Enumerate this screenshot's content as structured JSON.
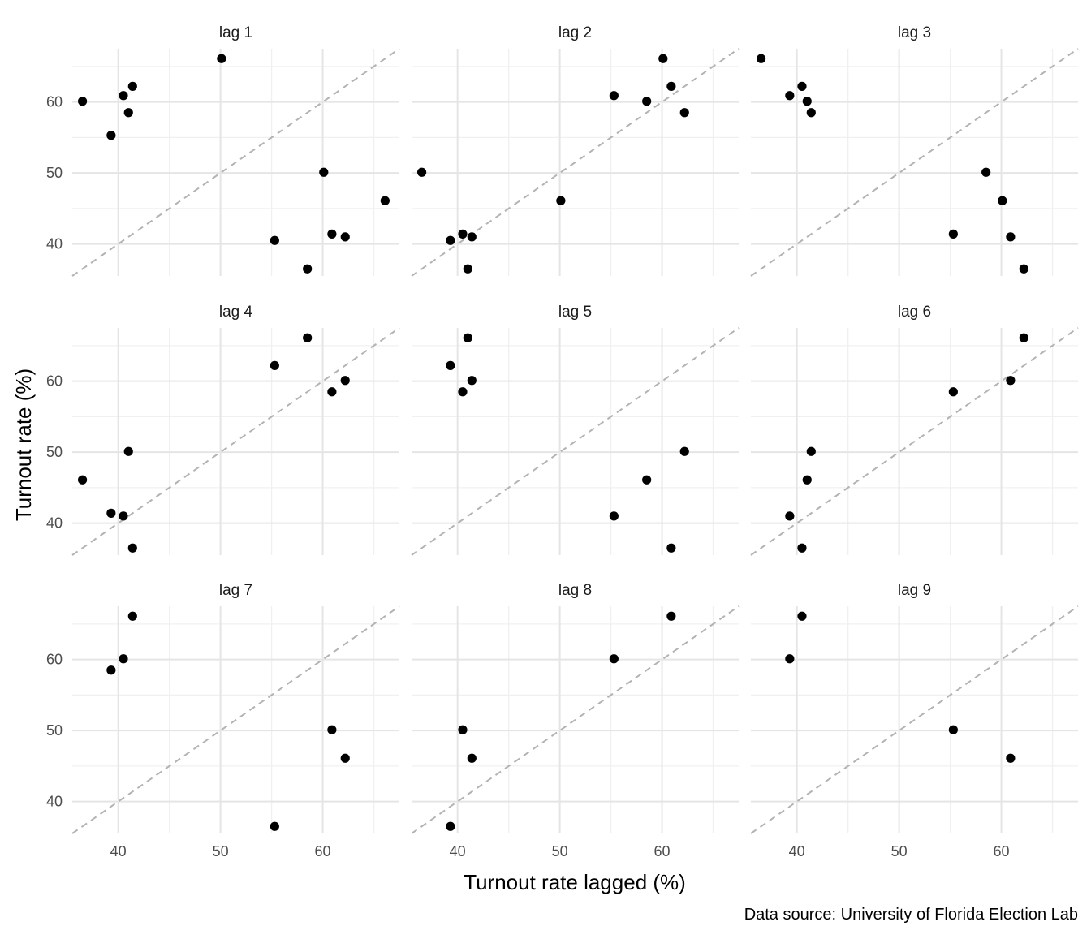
{
  "chart_data": {
    "type": "scatter",
    "facet": "wrap 3x3",
    "xlabel": "Turnout rate lagged (%)",
    "ylabel": "Turnout rate (%)",
    "caption": "Data source: University of Florida Election Lab",
    "xlim": [
      35.5,
      67.5
    ],
    "ylim": [
      35.5,
      67.5
    ],
    "x_ticks": [
      40,
      50,
      60
    ],
    "y_ticks": [
      40,
      50,
      60
    ],
    "reference_line": "y = x, dashed grey",
    "grid": true,
    "panels": [
      {
        "label": "lag 1",
        "x": [
          36.5,
          39.3,
          40.5,
          41.0,
          41.4,
          50.1,
          55.3,
          58.5,
          60.1,
          60.9,
          62.2,
          66.1
        ],
        "y": [
          60.1,
          55.3,
          60.9,
          58.5,
          62.2,
          66.1,
          40.5,
          36.5,
          50.1,
          41.4,
          41.0,
          46.1
        ]
      },
      {
        "label": "lag 2",
        "x": [
          36.5,
          39.3,
          40.5,
          41.0,
          41.4,
          50.1,
          55.3,
          58.5,
          60.1,
          60.9,
          62.2
        ],
        "y": [
          50.1,
          40.5,
          41.4,
          36.5,
          41.0,
          46.1,
          60.9,
          60.1,
          66.1,
          62.2,
          58.5
        ]
      },
      {
        "label": "lag 3",
        "x": [
          36.5,
          39.3,
          40.5,
          41.0,
          41.4,
          55.3,
          58.5,
          60.1,
          60.9,
          62.2
        ],
        "y": [
          66.1,
          60.9,
          62.2,
          60.1,
          58.5,
          41.4,
          50.1,
          46.1,
          41.0,
          36.5
        ]
      },
      {
        "label": "lag 4",
        "x": [
          36.5,
          39.3,
          40.5,
          41.0,
          41.4,
          55.3,
          58.5,
          60.9,
          62.2
        ],
        "y": [
          46.1,
          41.4,
          41.0,
          50.1,
          36.5,
          62.2,
          66.1,
          58.5,
          60.1
        ]
      },
      {
        "label": "lag 5",
        "x": [
          39.3,
          40.5,
          41.0,
          41.4,
          55.3,
          58.5,
          60.9,
          62.2
        ],
        "y": [
          62.2,
          58.5,
          66.1,
          60.1,
          41.0,
          46.1,
          36.5,
          50.1
        ]
      },
      {
        "label": "lag 6",
        "x": [
          39.3,
          40.5,
          41.0,
          41.4,
          55.3,
          60.9,
          62.2
        ],
        "y": [
          41.0,
          36.5,
          46.1,
          50.1,
          58.5,
          60.1,
          66.1
        ]
      },
      {
        "label": "lag 7",
        "x": [
          39.3,
          40.5,
          41.4,
          55.3,
          60.9,
          62.2
        ],
        "y": [
          58.5,
          60.1,
          66.1,
          36.5,
          50.1,
          46.1
        ]
      },
      {
        "label": "lag 8",
        "x": [
          39.3,
          40.5,
          41.4,
          55.3,
          60.9
        ],
        "y": [
          36.5,
          50.1,
          46.1,
          60.1,
          66.1
        ]
      },
      {
        "label": "lag 9",
        "x": [
          39.3,
          40.5,
          55.3,
          60.9
        ],
        "y": [
          60.1,
          66.1,
          50.1,
          46.1
        ]
      }
    ]
  }
}
